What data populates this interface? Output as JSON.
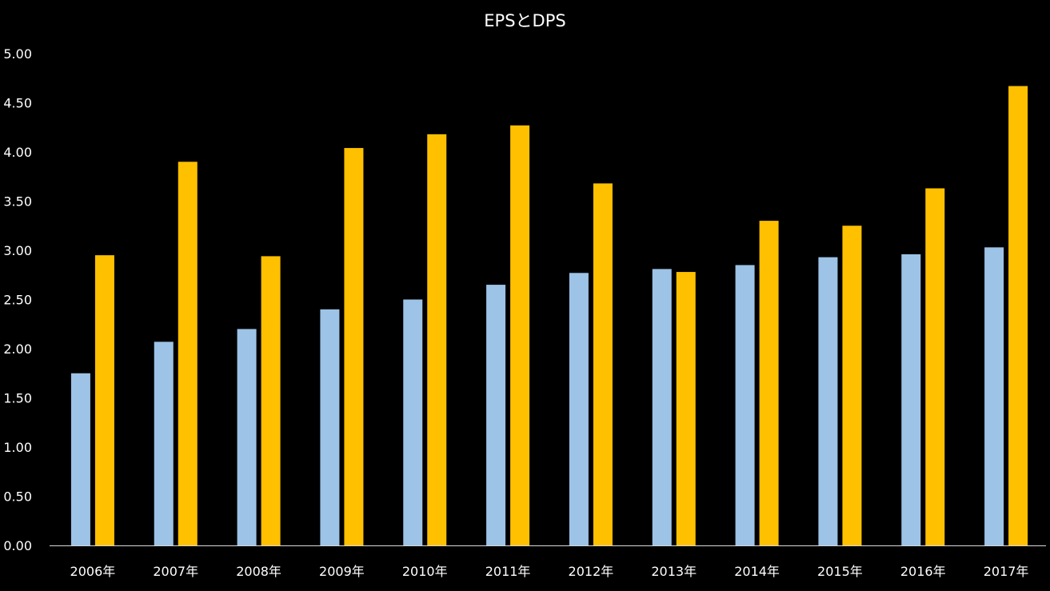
{
  "chart_data": {
    "type": "bar",
    "title": "EPSとDPS",
    "xlabel": "",
    "ylabel": "",
    "categories": [
      "2006年",
      "2007年",
      "2008年",
      "2009年",
      "2010年",
      "2011年",
      "2012年",
      "2013年",
      "2014年",
      "2015年",
      "2016年",
      "2017年"
    ],
    "series": [
      {
        "color": "#9dc3e6",
        "values": [
          1.75,
          2.07,
          2.2,
          2.4,
          2.5,
          2.65,
          2.77,
          2.81,
          2.85,
          2.93,
          2.96,
          3.03
        ]
      },
      {
        "color": "#ffc000",
        "values": [
          2.95,
          3.9,
          2.94,
          4.04,
          4.18,
          4.27,
          3.68,
          2.78,
          3.3,
          3.25,
          3.63,
          4.67
        ]
      }
    ],
    "ylim": [
      0,
      5
    ],
    "yticks": [
      "0.00",
      "0.50",
      "1.00",
      "1.50",
      "2.00",
      "2.50",
      "3.00",
      "3.50",
      "4.00",
      "4.50",
      "5.00"
    ],
    "grid": false,
    "legend": "none",
    "background": "#000000",
    "text_color": "#ffffff",
    "axis_color": "#d9d9d9"
  }
}
